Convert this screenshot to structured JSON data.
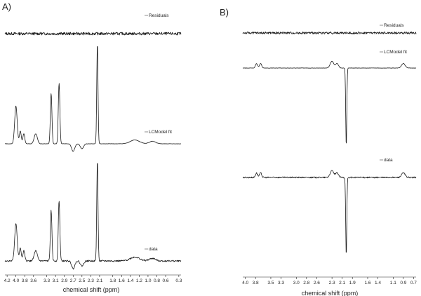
{
  "chart_data": [
    {
      "type": "line",
      "panel_label": "A)",
      "xlabel": "chemical shift (ppm)",
      "x_reversed": true,
      "xlim": [
        4.25,
        0.25
      ],
      "ticks": [
        "4.2",
        "4.0",
        "3.8",
        "3.6",
        "3.3",
        "3.1",
        "2.9",
        "2.7",
        "2.5",
        "2.3",
        "2.1",
        "1.8",
        "1.6",
        "1.4",
        "1.2",
        "1.0",
        "0.8",
        "0.6",
        "0.3"
      ],
      "grid": false,
      "series": [
        {
          "name": "Residuals",
          "kind": "noise",
          "noise_amp": 1.0
        },
        {
          "name": "LCModel fit",
          "kind": "peaks",
          "peaks": [
            [
              4.0,
              15,
              0.04
            ],
            [
              3.9,
              5,
              0.03
            ],
            [
              3.82,
              4,
              0.03
            ],
            [
              3.55,
              4,
              0.05
            ],
            [
              3.2,
              20,
              0.025
            ],
            [
              3.02,
              24,
              0.025
            ],
            [
              2.15,
              40,
              0.02
            ],
            [
              1.3,
              1.5,
              0.15
            ],
            [
              0.9,
              1,
              0.1
            ]
          ],
          "dips": [
            [
              2.7,
              -3,
              0.05
            ],
            [
              2.5,
              -2,
              0.05
            ]
          ]
        },
        {
          "name": "data",
          "kind": "peaks",
          "peaks": [
            [
              4.0,
              15,
              0.04
            ],
            [
              3.9,
              5,
              0.03
            ],
            [
              3.82,
              4,
              0.03
            ],
            [
              3.55,
              4,
              0.05
            ],
            [
              3.2,
              20,
              0.025
            ],
            [
              3.02,
              24,
              0.025
            ],
            [
              2.15,
              40,
              0.02
            ],
            [
              1.3,
              1.5,
              0.15
            ],
            [
              0.9,
              1,
              0.1
            ]
          ],
          "dips": [
            [
              2.7,
              -3,
              0.05
            ],
            [
              2.5,
              -2,
              0.05
            ]
          ]
        }
      ]
    },
    {
      "type": "line",
      "panel_label": "B)",
      "xlabel": "chemical shift (ppm)",
      "x_reversed": true,
      "xlim": [
        4.05,
        0.65
      ],
      "ticks": [
        "4.0",
        "3.8",
        "3.5",
        "3.3",
        "3.0",
        "2.8",
        "2.6",
        "2.3",
        "2.1",
        "1.9",
        "1.6",
        "1.4",
        "1.1",
        "0.9",
        "0.7"
      ],
      "grid": false,
      "series": [
        {
          "name": "Residuals",
          "kind": "noise",
          "noise_amp": 0.8
        },
        {
          "name": "LCModel fit",
          "kind": "peaks",
          "peaks": [
            [
              3.78,
              2,
              0.03
            ],
            [
              3.7,
              2,
              0.03
            ],
            [
              2.3,
              3,
              0.05
            ],
            [
              2.2,
              2,
              0.04
            ],
            [
              0.9,
              2,
              0.05
            ]
          ],
          "dips": [
            [
              2.02,
              -35,
              0.015
            ]
          ]
        },
        {
          "name": "data",
          "kind": "peaks",
          "peaks": [
            [
              3.78,
              2,
              0.03
            ],
            [
              3.7,
              2,
              0.03
            ],
            [
              2.3,
              3,
              0.05
            ],
            [
              2.2,
              2,
              0.04
            ],
            [
              0.9,
              2,
              0.05
            ]
          ],
          "dips": [
            [
              2.02,
              -35,
              0.015
            ]
          ]
        }
      ]
    }
  ]
}
